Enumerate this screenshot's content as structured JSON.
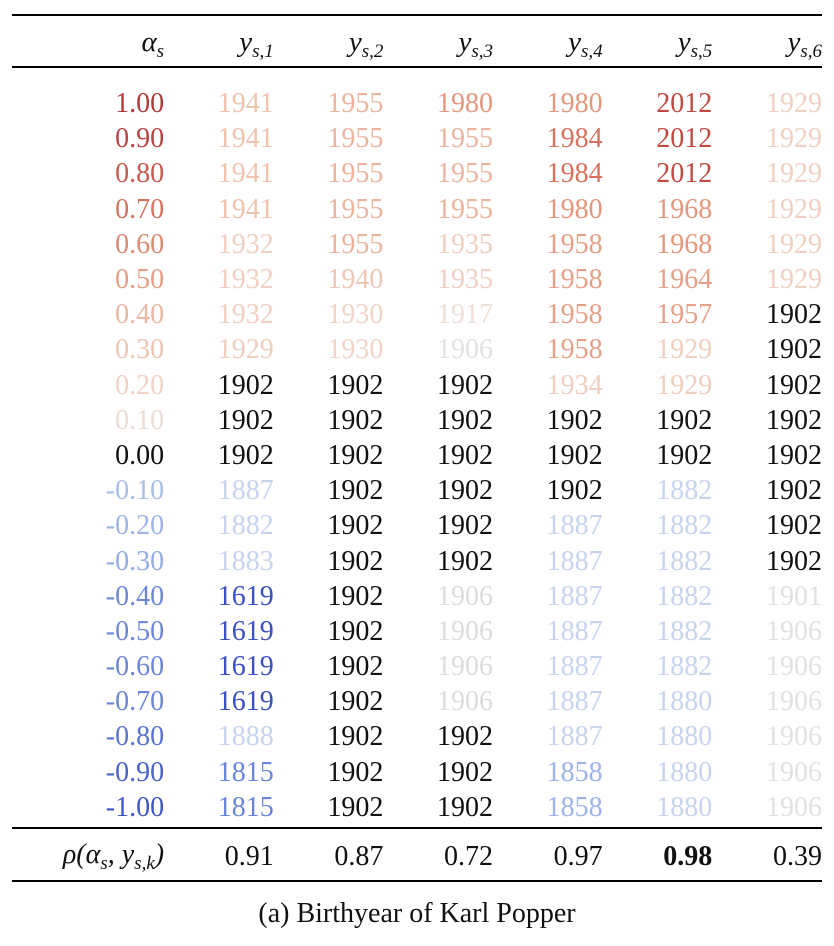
{
  "table": {
    "header": {
      "alpha_symbol": "α",
      "alpha_sub": "s",
      "col_symbol": "y",
      "columns": [
        "s,1",
        "s,2",
        "s,3",
        "s,4",
        "s,5",
        "s,6"
      ]
    },
    "rows": [
      {
        "alpha": "1.00",
        "values": [
          "1941",
          "1955",
          "1980",
          "1980",
          "2012",
          "1929"
        ]
      },
      {
        "alpha": "0.90",
        "values": [
          "1941",
          "1955",
          "1955",
          "1984",
          "2012",
          "1929"
        ]
      },
      {
        "alpha": "0.80",
        "values": [
          "1941",
          "1955",
          "1955",
          "1984",
          "2012",
          "1929"
        ]
      },
      {
        "alpha": "0.70",
        "values": [
          "1941",
          "1955",
          "1955",
          "1980",
          "1968",
          "1929"
        ]
      },
      {
        "alpha": "0.60",
        "values": [
          "1932",
          "1955",
          "1935",
          "1958",
          "1968",
          "1929"
        ]
      },
      {
        "alpha": "0.50",
        "values": [
          "1932",
          "1940",
          "1935",
          "1958",
          "1964",
          "1929"
        ]
      },
      {
        "alpha": "0.40",
        "values": [
          "1932",
          "1930",
          "1917",
          "1958",
          "1957",
          "1902"
        ]
      },
      {
        "alpha": "0.30",
        "values": [
          "1929",
          "1930",
          "1906",
          "1958",
          "1929",
          "1902"
        ]
      },
      {
        "alpha": "0.20",
        "values": [
          "1902",
          "1902",
          "1902",
          "1934",
          "1929",
          "1902"
        ]
      },
      {
        "alpha": "0.10",
        "values": [
          "1902",
          "1902",
          "1902",
          "1902",
          "1902",
          "1902"
        ]
      },
      {
        "alpha": "0.00",
        "values": [
          "1902",
          "1902",
          "1902",
          "1902",
          "1902",
          "1902"
        ]
      },
      {
        "alpha": "-0.10",
        "values": [
          "1887",
          "1902",
          "1902",
          "1902",
          "1882",
          "1902"
        ]
      },
      {
        "alpha": "-0.20",
        "values": [
          "1882",
          "1902",
          "1902",
          "1887",
          "1882",
          "1902"
        ]
      },
      {
        "alpha": "-0.30",
        "values": [
          "1883",
          "1902",
          "1902",
          "1887",
          "1882",
          "1902"
        ]
      },
      {
        "alpha": "-0.40",
        "values": [
          "1619",
          "1902",
          "1906",
          "1887",
          "1882",
          "1901"
        ]
      },
      {
        "alpha": "-0.50",
        "values": [
          "1619",
          "1902",
          "1906",
          "1887",
          "1882",
          "1906"
        ]
      },
      {
        "alpha": "-0.60",
        "values": [
          "1619",
          "1902",
          "1906",
          "1887",
          "1882",
          "1906"
        ]
      },
      {
        "alpha": "-0.70",
        "values": [
          "1619",
          "1902",
          "1906",
          "1887",
          "1880",
          "1906"
        ]
      },
      {
        "alpha": "-0.80",
        "values": [
          "1888",
          "1902",
          "1902",
          "1887",
          "1880",
          "1906"
        ]
      },
      {
        "alpha": "-0.90",
        "values": [
          "1815",
          "1902",
          "1902",
          "1858",
          "1880",
          "1906"
        ]
      },
      {
        "alpha": "-1.00",
        "values": [
          "1815",
          "1902",
          "1902",
          "1858",
          "1880",
          "1906"
        ]
      }
    ],
    "alpha_colors": [
      "#b03a3a",
      "#b84444",
      "#c65a50",
      "#d4735e",
      "#dc8a72",
      "#e49f86",
      "#eab8a3",
      "#eec5b4",
      "#f0d2c6",
      "#ecdcd6",
      "#111111",
      "#a9bde8",
      "#9fb4e6",
      "#94abe4",
      "#6d86d8",
      "#6d86d8",
      "#6d86d8",
      "#6d86d8",
      "#5b74d0",
      "#4a63c8",
      "#3f57c2"
    ],
    "value_colors": [
      [
        "#efc3ae",
        "#ecb49e",
        "#e4977c",
        "#e4977c",
        "#c04a42",
        "#f0d0c2"
      ],
      [
        "#efc3ae",
        "#ecb49e",
        "#ecb49e",
        "#d8725f",
        "#c04a42",
        "#f0d0c2"
      ],
      [
        "#efc3ae",
        "#ecb49e",
        "#ecb49e",
        "#d8725f",
        "#c04a42",
        "#f0d0c2"
      ],
      [
        "#efc3ae",
        "#ecb49e",
        "#ecb49e",
        "#e4977c",
        "#e4977c",
        "#f0d0c2"
      ],
      [
        "#f0d0c2",
        "#ecb49e",
        "#f0cfc2",
        "#e6a088",
        "#e4977c",
        "#f0d0c2"
      ],
      [
        "#f0d0c2",
        "#efc5b5",
        "#f0cfc2",
        "#e6a088",
        "#e6a088",
        "#f0d0c2"
      ],
      [
        "#f0d0c2",
        "#f0d4c8",
        "#eedfd8",
        "#e6a088",
        "#e6a088",
        "#111111"
      ],
      [
        "#efcfc0",
        "#f0d4c8",
        "#e2e2e2",
        "#e6a088",
        "#efcfc0",
        "#111111"
      ],
      [
        "#111111",
        "#111111",
        "#111111",
        "#efcfc0",
        "#efcfc0",
        "#111111"
      ],
      [
        "#111111",
        "#111111",
        "#111111",
        "#111111",
        "#111111",
        "#111111"
      ],
      [
        "#111111",
        "#111111",
        "#111111",
        "#111111",
        "#111111",
        "#111111"
      ],
      [
        "#c8d4ee",
        "#111111",
        "#111111",
        "#111111",
        "#c8d4ee",
        "#111111"
      ],
      [
        "#c8d4ee",
        "#111111",
        "#111111",
        "#c8d4ee",
        "#c8d4ee",
        "#111111"
      ],
      [
        "#c8d4ee",
        "#111111",
        "#111111",
        "#c8d4ee",
        "#c8d4ee",
        "#111111"
      ],
      [
        "#3c50c0",
        "#111111",
        "#dddddd",
        "#c8d4ee",
        "#c8d4ee",
        "#e2e2e2"
      ],
      [
        "#3c50c0",
        "#111111",
        "#dddddd",
        "#c8d4ee",
        "#c8d4ee",
        "#e2e2e2"
      ],
      [
        "#3c50c0",
        "#111111",
        "#dddddd",
        "#c8d4ee",
        "#c8d4ee",
        "#e2e2e2"
      ],
      [
        "#3c50c0",
        "#111111",
        "#dddddd",
        "#c8d4ee",
        "#c8d4ee",
        "#e2e2e2"
      ],
      [
        "#c8d4ee",
        "#111111",
        "#111111",
        "#c8d4ee",
        "#c8d4ee",
        "#e2e2e2"
      ],
      [
        "#6a86da",
        "#111111",
        "#111111",
        "#9db3ea",
        "#c8d4ee",
        "#e2e2e2"
      ],
      [
        "#6a86da",
        "#111111",
        "#111111",
        "#9db3ea",
        "#c8d4ee",
        "#e2e2e2"
      ]
    ],
    "correlation": {
      "label_prefix": "ρ(α",
      "label_sub1": "s",
      "label_mid": ", y",
      "label_sub2": "s,k",
      "label_suffix": ")",
      "values": [
        "0.91",
        "0.87",
        "0.72",
        "0.97",
        "0.98",
        "0.39"
      ],
      "bold_index": 4
    }
  },
  "caption": "(a) Birthyear of Karl Popper"
}
